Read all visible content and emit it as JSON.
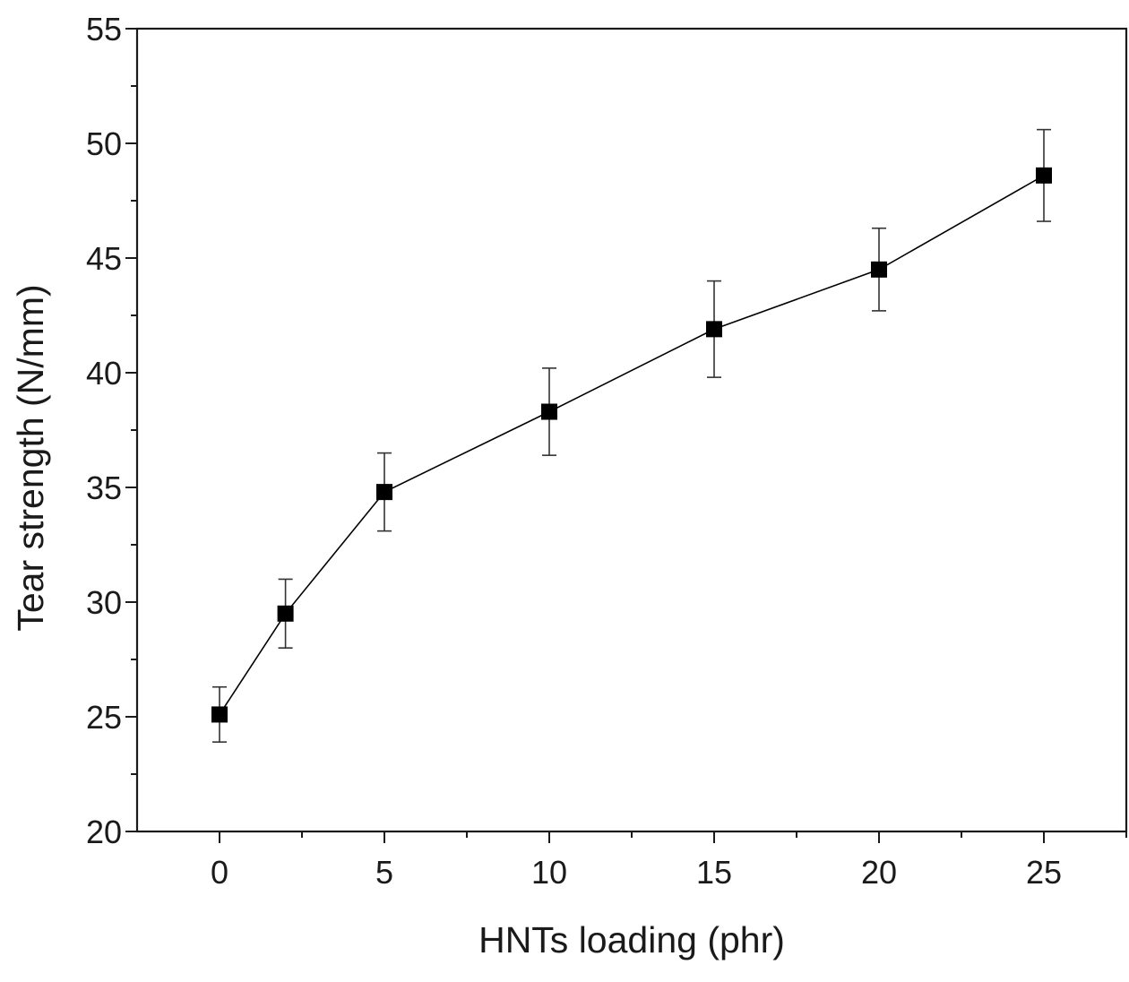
{
  "chart_data": {
    "type": "line",
    "title": "",
    "xlabel": "HNTs loading (phr)",
    "ylabel": "Tear strength (N/mm)",
    "xlim": [
      -2.5,
      27.5
    ],
    "ylim": [
      20,
      55
    ],
    "x_ticks": [
      0,
      5,
      10,
      15,
      20,
      25
    ],
    "x_minor_ticks": [
      2.5,
      7.5,
      12.5,
      17.5,
      22.5,
      27.5
    ],
    "y_ticks": [
      20,
      25,
      30,
      35,
      40,
      45,
      50,
      55
    ],
    "y_minor_ticks": [
      22.5,
      27.5,
      32.5,
      37.5,
      42.5,
      47.5,
      52.5
    ],
    "grid": false,
    "legend": "none",
    "marker": "square",
    "color": "#000000",
    "series": [
      {
        "x": [
          0,
          2,
          5,
          10,
          15,
          20,
          25
        ],
        "y": [
          25.1,
          29.5,
          34.8,
          38.3,
          41.9,
          44.5,
          48.6
        ],
        "error": [
          1.2,
          1.5,
          1.7,
          1.9,
          2.1,
          1.8,
          2.0
        ]
      }
    ]
  }
}
